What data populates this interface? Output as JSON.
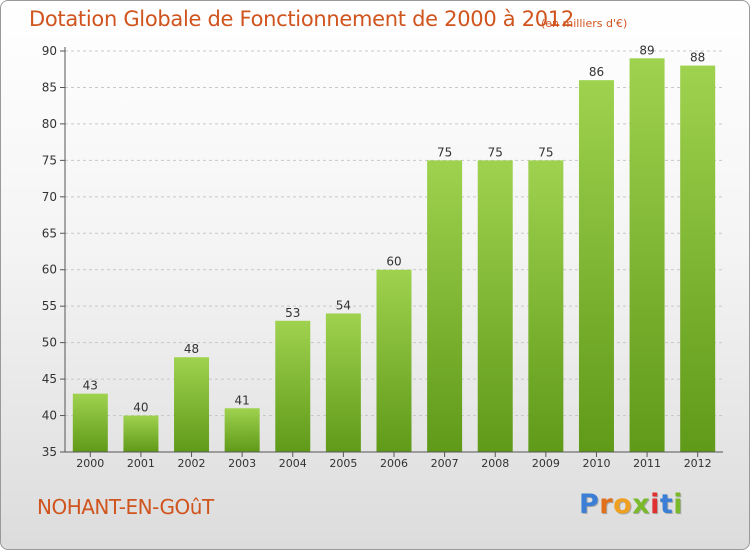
{
  "header": {
    "title": "Dotation Globale de Fonctionnement de 2000 à 2012",
    "subtitle": "(en milliers d'€)"
  },
  "footer": {
    "commune": "NOHANT-EN-GOûT",
    "brand": "Proxiti",
    "brand_colors": [
      "#3a7fd5",
      "#e0701c",
      "#f0a020",
      "#7aba2a",
      "#e03030",
      "#3a7fd5",
      "#7aba2a"
    ]
  },
  "chart_data": {
    "type": "bar",
    "title": "Dotation Globale de Fonctionnement de 2000 à 2012",
    "xlabel": "",
    "ylabel": "",
    "categories": [
      "2000",
      "2001",
      "2002",
      "2003",
      "2004",
      "2005",
      "2006",
      "2007",
      "2008",
      "2009",
      "2010",
      "2011",
      "2012"
    ],
    "values": [
      43,
      40,
      48,
      41,
      53,
      54,
      60,
      75,
      75,
      75,
      86,
      89,
      88
    ],
    "ylim": [
      35,
      90
    ],
    "yticks": [
      35,
      40,
      45,
      50,
      55,
      60,
      65,
      70,
      75,
      80,
      85,
      90
    ],
    "grid": true,
    "bar_color_top": "#9fd24f",
    "bar_color_bottom": "#5f9a18"
  }
}
